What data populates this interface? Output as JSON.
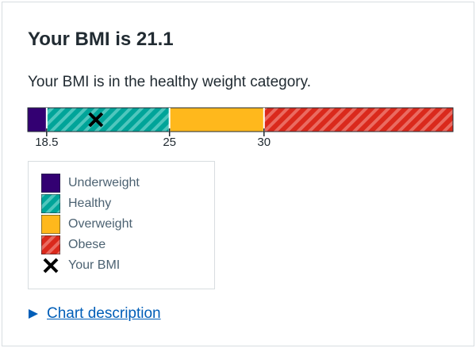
{
  "title": "Your BMI is 21.1",
  "result_text": "Your BMI is in the healthy weight category.",
  "colors": {
    "underweight": "#330072",
    "healthy": "#00a499",
    "overweight": "#ffb81c",
    "obese": "#da291c",
    "marker": "#000000",
    "link": "#005eb8",
    "border": "#d8dde0"
  },
  "chart_data": {
    "type": "bar",
    "min": 17.5,
    "max": 40,
    "bands": [
      {
        "key": "underweight",
        "label": "Underweight",
        "from": 17.5,
        "to": 18.5
      },
      {
        "key": "healthy",
        "label": "Healthy",
        "from": 18.5,
        "to": 25
      },
      {
        "key": "overweight",
        "label": "Overweight",
        "from": 25,
        "to": 30
      },
      {
        "key": "obese",
        "label": "Obese",
        "from": 30,
        "to": 40
      }
    ],
    "ticks": [
      "18.5",
      "25",
      "30"
    ],
    "marker_value": 21.1,
    "marker_label": "Your BMI"
  },
  "legend": {
    "items": [
      {
        "key": "underweight",
        "icon": "solid-swatch",
        "label": "Underweight"
      },
      {
        "key": "healthy",
        "icon": "striped-swatch",
        "label": "Healthy"
      },
      {
        "key": "overweight",
        "icon": "solid-swatch",
        "label": "Overweight"
      },
      {
        "key": "obese",
        "icon": "striped-swatch",
        "label": "Obese"
      },
      {
        "key": "marker",
        "icon": "cross-icon",
        "label": "Your BMI"
      }
    ]
  },
  "details": {
    "label": "Chart description",
    "icon": "triangle-right-icon"
  }
}
